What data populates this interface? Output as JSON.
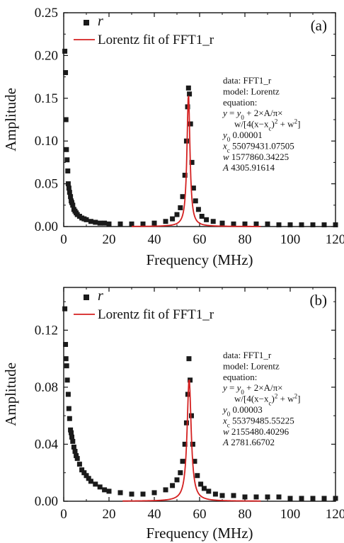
{
  "chart_data": [
    {
      "panel_label": "(a)",
      "type": "scatter",
      "xlabel": "Frequency (MHz)",
      "ylabel": "Amplitude",
      "xlim": [
        0,
        120
      ],
      "ylim": [
        0,
        0.25
      ],
      "x_ticks": [
        "0",
        "20",
        "40",
        "60",
        "80",
        "100",
        "120"
      ],
      "y_ticks": [
        "0.00",
        "0.05",
        "0.10",
        "0.15",
        "0.20",
        "0.25"
      ],
      "legend_position": "top-left",
      "series": [
        {
          "name": "r",
          "kind": "scatter",
          "marker": "square",
          "color": "#1a1a1a",
          "x": [
            0.5,
            0.8,
            1.0,
            1.2,
            1.5,
            1.8,
            2.0,
            2.3,
            2.6,
            3.0,
            3.3,
            3.6,
            4.0,
            4.5,
            5.0,
            5.5,
            6.0,
            7.0,
            8.0,
            9.0,
            10.0,
            12.0,
            14.0,
            16.0,
            18.0,
            20.0,
            25.0,
            30.0,
            35.0,
            40.0,
            45.0,
            48.0,
            50.0,
            51.5,
            52.5,
            53.5,
            54.2,
            54.7,
            55.1,
            55.5,
            56.0,
            56.6,
            57.3,
            58.2,
            59.5,
            61.0,
            63.0,
            66.0,
            70.0,
            75.0,
            80.0,
            85.0,
            90.0,
            95.0,
            100.0,
            105.0,
            110.0,
            115.0,
            120.0
          ],
          "y": [
            0.205,
            0.18,
            0.125,
            0.09,
            0.078,
            0.065,
            0.05,
            0.045,
            0.04,
            0.035,
            0.03,
            0.028,
            0.025,
            0.02,
            0.018,
            0.016,
            0.014,
            0.012,
            0.01,
            0.009,
            0.008,
            0.006,
            0.005,
            0.004,
            0.004,
            0.003,
            0.003,
            0.003,
            0.003,
            0.004,
            0.006,
            0.009,
            0.014,
            0.022,
            0.035,
            0.06,
            0.1,
            0.14,
            0.162,
            0.155,
            0.12,
            0.075,
            0.045,
            0.03,
            0.02,
            0.012,
            0.008,
            0.006,
            0.004,
            0.003,
            0.003,
            0.003,
            0.003,
            0.002,
            0.002,
            0.002,
            0.002,
            0.002,
            0.002
          ]
        },
        {
          "name": "Lorentz fit of FFT1_r",
          "kind": "line",
          "color": "#d42020",
          "x_range": [
            30,
            87
          ],
          "y0": 1e-05,
          "xc_mhz": 55.07943107505,
          "w_mhz": 1.57786034225,
          "peak": 0.155
        }
      ],
      "annotation": {
        "lines": [
          "data: FFT1_r",
          "model: Lorentz",
          "equation:"
        ],
        "eq1": {
          "lhs": "y",
          "rest": " = y",
          "sub": "0",
          "tail": " + 2×A/π×"
        },
        "eq2": "w/[4(x−x",
        "eq2_sub": "c",
        "eq2_tail": ")",
        "eq2_sup": "2",
        "eq2_end": " + w",
        "eq2_sup2": "2",
        "eq2_close": "]",
        "params": [
          {
            "sym": "y",
            "sub": "0",
            "value": "0.00001"
          },
          {
            "sym": "x",
            "sub": "c",
            "value": "55079431.07505"
          },
          {
            "sym": "w",
            "sub": "",
            "value": "1577860.34225"
          },
          {
            "sym": "A",
            "sub": "",
            "value": "4305.91614"
          }
        ]
      }
    },
    {
      "panel_label": "(b)",
      "type": "scatter",
      "xlabel": "Frequency (MHz)",
      "ylabel": "Amplitude",
      "xlim": [
        0,
        120
      ],
      "ylim": [
        0,
        0.15
      ],
      "x_ticks": [
        "0",
        "20",
        "40",
        "60",
        "80",
        "100",
        "120"
      ],
      "y_ticks": [
        "0.00",
        "0.04",
        "0.08",
        "0.12"
      ],
      "y_tick_values": [
        0,
        0.04,
        0.08,
        0.12
      ],
      "legend_position": "top-left",
      "series": [
        {
          "name": "r",
          "kind": "scatter",
          "marker": "square",
          "color": "#1a1a1a",
          "x": [
            0.5,
            0.8,
            1.0,
            1.3,
            1.6,
            2.0,
            2.3,
            2.6,
            3.0,
            3.3,
            3.6,
            4.0,
            4.5,
            5.0,
            5.5,
            6.0,
            7.0,
            8.0,
            9.0,
            10.0,
            11.0,
            12.0,
            14.0,
            16.0,
            18.0,
            20.0,
            25.0,
            30.0,
            35.0,
            40.0,
            45.0,
            48.0,
            50.0,
            51.5,
            52.5,
            53.5,
            54.2,
            54.8,
            55.3,
            55.8,
            56.4,
            57.0,
            57.8,
            59.0,
            60.5,
            62.0,
            64.0,
            67.0,
            70.0,
            75.0,
            80.0,
            85.0,
            90.0,
            95.0,
            100.0,
            105.0,
            110.0,
            115.0,
            120.0
          ],
          "y": [
            0.135,
            0.11,
            0.1,
            0.095,
            0.085,
            0.075,
            0.065,
            0.058,
            0.05,
            0.048,
            0.045,
            0.042,
            0.038,
            0.035,
            0.032,
            0.03,
            0.026,
            0.022,
            0.02,
            0.018,
            0.016,
            0.014,
            0.012,
            0.01,
            0.008,
            0.007,
            0.006,
            0.005,
            0.005,
            0.006,
            0.008,
            0.011,
            0.015,
            0.02,
            0.028,
            0.04,
            0.055,
            0.075,
            0.1,
            0.085,
            0.06,
            0.04,
            0.028,
            0.018,
            0.012,
            0.009,
            0.007,
            0.005,
            0.004,
            0.004,
            0.003,
            0.003,
            0.003,
            0.003,
            0.002,
            0.002,
            0.002,
            0.002,
            0.002
          ]
        },
        {
          "name": "Lorentz fit of FFT1_r",
          "kind": "line",
          "color": "#d42020",
          "x_range": [
            26,
            87
          ],
          "y0": 3e-05,
          "xc_mhz": 55.37948555225,
          "w_mhz": 2.15548040296,
          "peak": 0.086
        }
      ],
      "annotation": {
        "lines": [
          "data: FFT1_r",
          "model: Lorentz",
          "equation:"
        ],
        "eq1": {
          "lhs": "y",
          "rest": " = y",
          "sub": "0",
          "tail": " + 2×A/π×"
        },
        "eq2": "w/[4(x−x",
        "eq2_sub": "c",
        "eq2_tail": ")",
        "eq2_sup": "2",
        "eq2_end": " + w",
        "eq2_sup2": "2",
        "eq2_close": "]",
        "params": [
          {
            "sym": "y",
            "sub": "0",
            "value": "0.00003"
          },
          {
            "sym": "x",
            "sub": "c",
            "value": "55379485.55225"
          },
          {
            "sym": "w",
            "sub": "",
            "value": "2155480.40296"
          },
          {
            "sym": "A",
            "sub": "",
            "value": "2781.66702"
          }
        ]
      }
    }
  ]
}
